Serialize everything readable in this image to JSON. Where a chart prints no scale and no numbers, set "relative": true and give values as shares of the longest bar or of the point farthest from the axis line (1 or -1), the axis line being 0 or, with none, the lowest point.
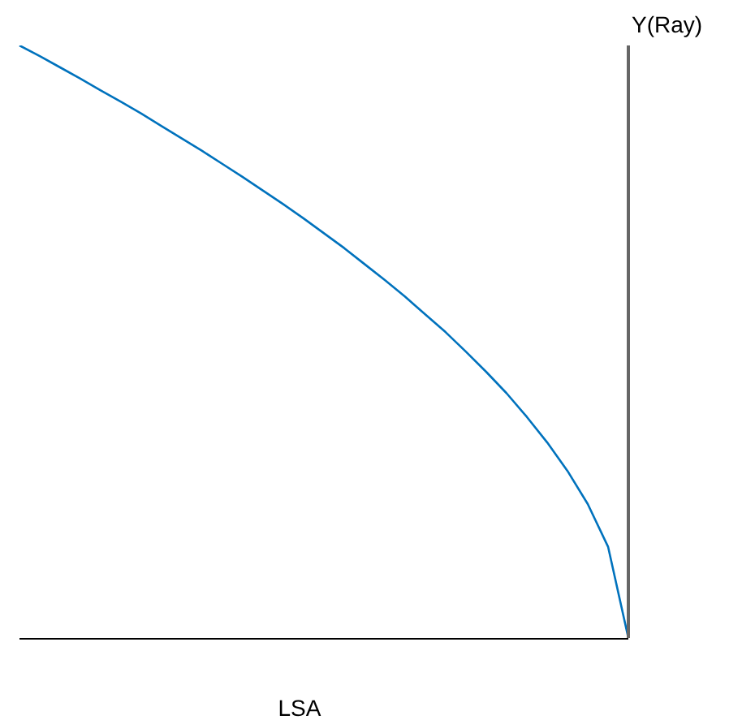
{
  "chart_data": {
    "type": "line",
    "relative": true,
    "xlabel": "LSA",
    "ylabel": "Y(Ray)",
    "legend": false,
    "marker": "none",
    "line_style": "solid",
    "categories": [
      null,
      null,
      null,
      null,
      null,
      null,
      null,
      null,
      null,
      null,
      null,
      null,
      null,
      null,
      null,
      null,
      null,
      null,
      null,
      null,
      null,
      null,
      null,
      null,
      null,
      null,
      null,
      null,
      null,
      null,
      null
    ],
    "series": [
      {
        "color": "#0072bd",
        "values": [
          1,
          0.982,
          0.963,
          0.944,
          0.924,
          0.905,
          0.885,
          0.864,
          0.843,
          0.822,
          0.8,
          0.778,
          0.755,
          0.732,
          0.708,
          0.683,
          0.658,
          0.631,
          0.604,
          0.576,
          0.546,
          0.516,
          0.483,
          0.449,
          0.413,
          0.373,
          0.33,
          0.282,
          0.226,
          0.154,
          0
        ]
      }
    ]
  }
}
